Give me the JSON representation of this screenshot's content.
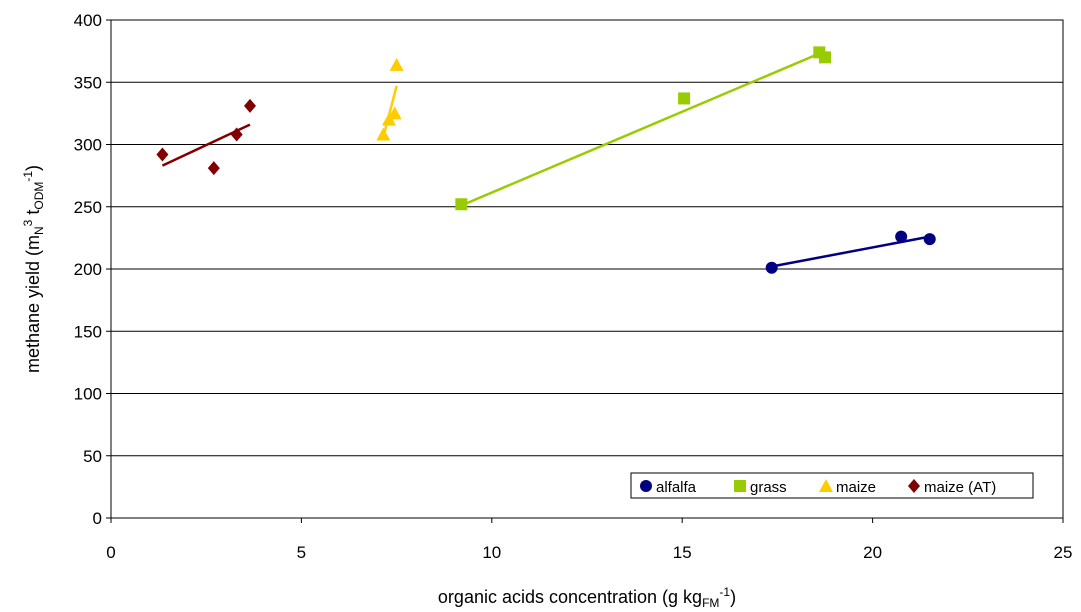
{
  "chart_data": {
    "type": "scatter",
    "title": "",
    "xlabel": {
      "main": "organic acids concentration (g kg",
      "sub": "FM",
      "sup": "-1",
      "close": ")"
    },
    "ylabel": {
      "main": "methane yield (m",
      "sub1": "N",
      "sup1": "3",
      "mid": " t",
      "sub2": "ODM",
      "sup2": "-1",
      "close": ")"
    },
    "xlim": [
      0,
      25
    ],
    "ylim": [
      0,
      400
    ],
    "xticks": [
      0,
      5,
      10,
      15,
      20,
      25
    ],
    "yticks": [
      0,
      50,
      100,
      150,
      200,
      250,
      300,
      350,
      400
    ],
    "grid": "horizontal",
    "legend_position": "bottom-right",
    "series": [
      {
        "name": "alfalfa",
        "marker": "circle",
        "color": "#000080",
        "points": [
          [
            17.35,
            201
          ],
          [
            20.75,
            226
          ],
          [
            21.5,
            224
          ]
        ],
        "trendline": [
          [
            17.35,
            202
          ],
          [
            21.5,
            226
          ]
        ]
      },
      {
        "name": "grass",
        "marker": "square",
        "color": "#99CC00",
        "points": [
          [
            9.2,
            252
          ],
          [
            15.05,
            337
          ],
          [
            18.6,
            374
          ],
          [
            18.75,
            370
          ]
        ],
        "trendline": [
          [
            9.2,
            251
          ],
          [
            18.75,
            375
          ]
        ]
      },
      {
        "name": "maize",
        "marker": "triangle",
        "color": "#FFCC00",
        "points": [
          [
            7.15,
            308
          ],
          [
            7.3,
            320
          ],
          [
            7.45,
            325
          ],
          [
            7.5,
            364
          ]
        ],
        "trendline": [
          [
            7.15,
            306
          ],
          [
            7.5,
            347
          ]
        ]
      },
      {
        "name": "maize (AT)",
        "marker": "diamond",
        "color": "#800000",
        "points": [
          [
            1.35,
            292
          ],
          [
            2.7,
            281
          ],
          [
            3.3,
            308
          ],
          [
            3.65,
            331
          ]
        ],
        "trendline": [
          [
            1.35,
            283
          ],
          [
            3.65,
            316
          ]
        ]
      }
    ]
  }
}
